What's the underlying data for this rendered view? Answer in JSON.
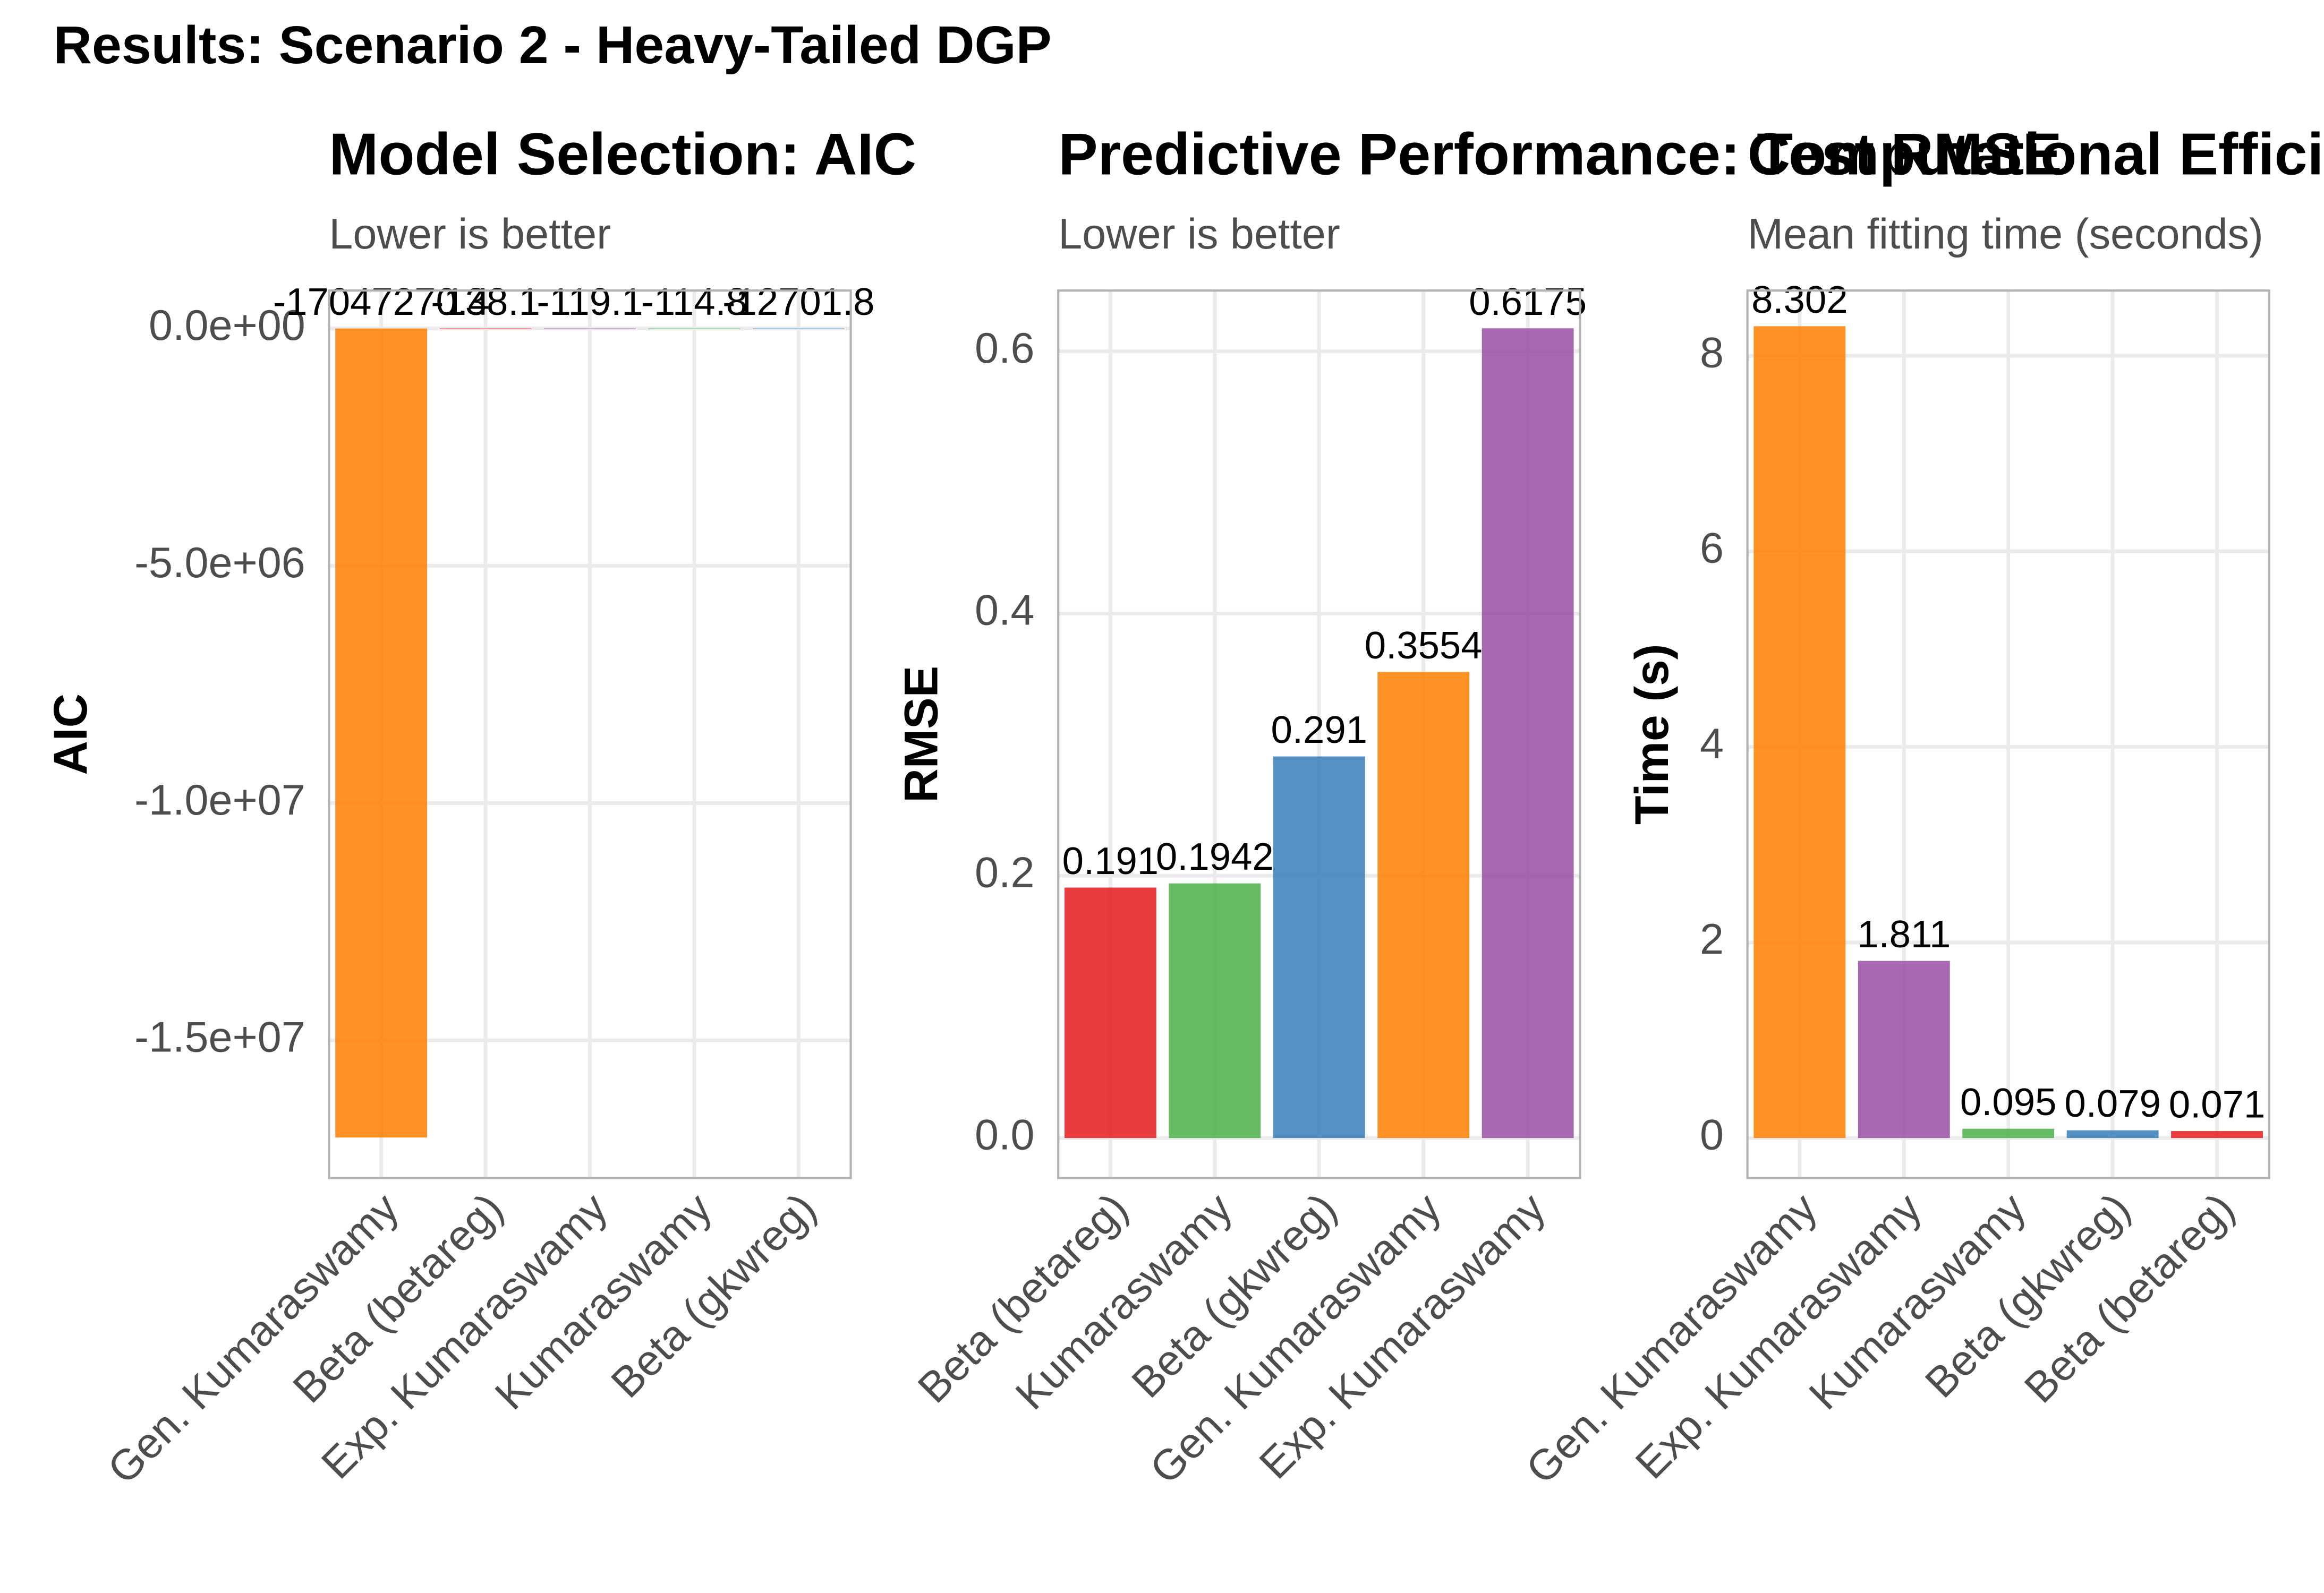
{
  "title": "Results: Scenario 2 - Heavy-Tailed DGP",
  "chart_data": [
    {
      "type": "bar",
      "title": "Model Selection: AIC",
      "subtitle": "Lower is better",
      "ylabel": "AIC",
      "categories": [
        "Gen. Kumaraswamy",
        "Beta (betareg)",
        "Exp. Kumaraswamy",
        "Kumaraswamy",
        "Beta (gkwreg)"
      ],
      "values": [
        -17047270.4,
        -138.1,
        -119.1,
        -114.8,
        -12701.8
      ],
      "colors": [
        "#ff7f00",
        "#e41a1c",
        "#984ea3",
        "#4daf4a",
        "#377eb8"
      ],
      "ylim": [
        -17900000,
        800000
      ],
      "yticks": [
        {
          "value": 0,
          "label": "0.0e+00"
        },
        {
          "value": -5000000,
          "label": "-5.0e+06"
        },
        {
          "value": -10000000,
          "label": "-1.0e+07"
        },
        {
          "value": -15000000,
          "label": "-1.5e+07"
        }
      ],
      "grid": true
    },
    {
      "type": "bar",
      "title": "Predictive Performance: Test RMSE",
      "subtitle": "Lower is better",
      "ylabel": "RMSE",
      "categories": [
        "Beta (betareg)",
        "Kumaraswamy",
        "Beta (gkwreg)",
        "Gen. Kumaraswamy",
        "Exp. Kumaraswamy"
      ],
      "values": [
        0.191,
        0.1942,
        0.291,
        0.3554,
        0.6175
      ],
      "colors": [
        "#e41a1c",
        "#4daf4a",
        "#377eb8",
        "#ff7f00",
        "#984ea3"
      ],
      "ylim": [
        -0.0305,
        0.6463
      ],
      "yticks": [
        {
          "value": 0,
          "label": "0.0"
        },
        0.2,
        0.4,
        0.6
      ],
      "grid": true
    },
    {
      "type": "bar",
      "title": "Computational Efficiency",
      "subtitle": "Mean fitting time (seconds)",
      "ylabel": "Time (s)",
      "categories": [
        "Gen. Kumaraswamy",
        "Exp. Kumaraswamy",
        "Kumaraswamy",
        "Beta (gkwreg)",
        "Beta (betareg)"
      ],
      "values": [
        8.302,
        1.811,
        0.095,
        0.079,
        0.071
      ],
      "colors": [
        "#ff7f00",
        "#984ea3",
        "#4daf4a",
        "#377eb8",
        "#e41a1c"
      ],
      "ylim": [
        -0.409,
        8.667
      ],
      "yticks": [
        0,
        2,
        4,
        6,
        8
      ],
      "grid": true
    }
  ]
}
